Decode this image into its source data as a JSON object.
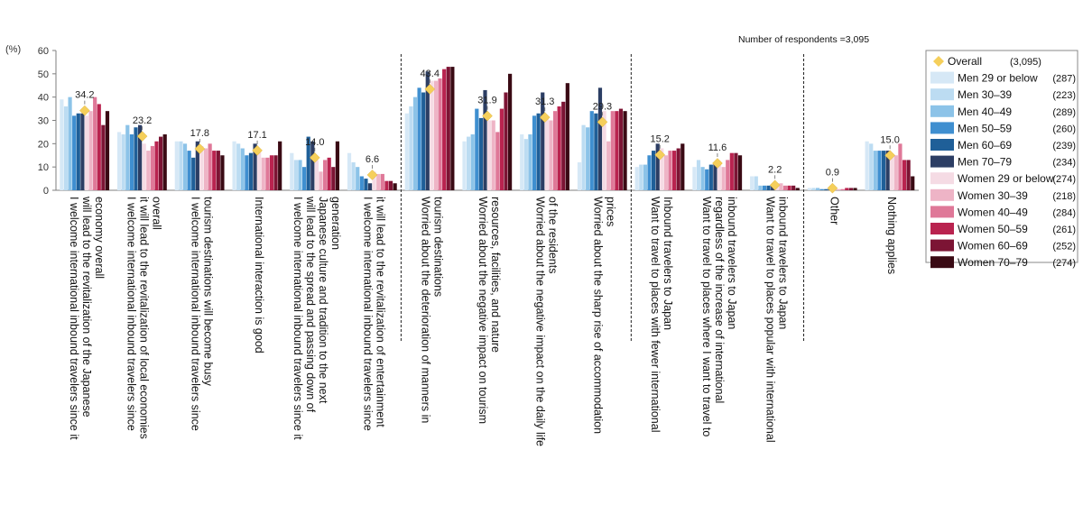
{
  "chart_data": {
    "type": "bar",
    "ylabel": "(%)",
    "ylim": [
      0,
      60
    ],
    "yticks": [
      0,
      10,
      20,
      30,
      40,
      50,
      60
    ],
    "note": "Number of respondents =3,095",
    "categories": [
      "I welcome international inbound travelers since it will lead to the revitalization of the Japanese economy overall",
      "I welcome international inbound travelers since it will lead to the revitalization of local economies overall",
      "I welcome international inbound travelers since tourism destinations will become busy",
      "International interaction is good",
      "I welcome international inbound travelers since it will lead to the spread and passing down of Japanese culture and tradition to the next generation",
      "I welcome international inbound travelers since it will lead to the revitalization of entertainment",
      "Worried about the deterioration of manners in tourism destinations",
      "Worried about the negative impact on tourism resources, facilities, and nature",
      "Worried about the negative impact on the daily life of the residents",
      "Worried about the sharp rise of accommodation prices",
      "Want to travel to places with fewer international inbound travelers to Japan",
      "Want to travel to places where I want to travel to regardless of the increase of international inbound travelers to Japan",
      "Want to travel to places popular with international inbound travelers to Japan",
      "Other",
      "Nothing applies"
    ],
    "category_lines": [
      [
        "I welcome international inbound travelers  since it",
        "will lead to the revitalization of the Japanese",
        "economy overall"
      ],
      [
        "I welcome international inbound travelers since",
        "it will lead to the revitalization of local economies",
        "overall"
      ],
      [
        "I welcome international inbound travelers since",
        "tourism destinations will become busy"
      ],
      [
        "International interaction is good"
      ],
      [
        "I welcome international inbound travelers since it",
        "will lead to the spread and passing down of",
        "Japanese culture and tradition to the next",
        "generation"
      ],
      [
        "I welcome international inbound travelers since",
        "it will lead to the revitalization of entertainment"
      ],
      [
        "Worried about the deterioration of manners in",
        "tourism destinations"
      ],
      [
        "Worried about the negative impact on tourism",
        "resources, facilities, and nature"
      ],
      [
        "Worried about the negative impact on the daily life",
        "of the residents"
      ],
      [
        "Worried about the sharp rise of accommodation",
        "prices"
      ],
      [
        "Want to travel to places with fewer international",
        "Inbound travelers to Japan"
      ],
      [
        "Want to travel to places where I want to travel to",
        "regardless of the increase of international",
        "inbound travelers to Japan"
      ],
      [
        "Want to travel to places popular with international",
        "inbound travelers to Japan"
      ],
      [
        "Other"
      ],
      [
        "Nothing applies"
      ]
    ],
    "overall": {
      "name": "Overall",
      "count": "(3,095)",
      "values": [
        34.2,
        23.2,
        17.8,
        17.1,
        14.0,
        6.6,
        43.4,
        31.9,
        31.3,
        29.3,
        15.2,
        11.6,
        2.2,
        0.9,
        15.0
      ]
    },
    "series": [
      {
        "name": "Men 29 or below",
        "count": "(287)",
        "color": "#d6e8f6",
        "values": [
          39,
          25,
          21,
          21,
          16,
          16,
          33,
          21,
          24,
          12,
          10,
          10,
          6,
          1,
          21
        ]
      },
      {
        "name": "Men 30–39",
        "count": "(223)",
        "color": "#bcdcf2",
        "values": [
          36,
          24,
          21,
          20,
          13,
          12,
          36,
          23,
          22,
          28,
          11,
          13,
          6,
          1,
          20
        ]
      },
      {
        "name": "Men 40–49",
        "count": "(289)",
        "color": "#8cc3e8",
        "values": [
          40,
          28,
          20,
          18,
          13,
          10,
          40,
          24,
          24,
          27,
          11,
          10,
          2,
          1,
          17
        ]
      },
      {
        "name": "Men 50–59",
        "count": "(260)",
        "color": "#3f8fd0",
        "values": [
          32,
          24,
          17,
          15,
          10,
          6,
          44,
          35,
          32,
          34,
          15,
          9,
          2,
          0.5,
          17
        ]
      },
      {
        "name": "Men 60–69",
        "count": "(239)",
        "color": "#1f5f98",
        "values": [
          33,
          27,
          14,
          16,
          23,
          5,
          42,
          31,
          33,
          33,
          17,
          11,
          2,
          0.5,
          17
        ]
      },
      {
        "name": "Men 70–79",
        "count": "(234)",
        "color": "#2c3e64",
        "values": [
          33,
          28,
          21,
          20,
          21,
          3,
          51,
          43,
          42,
          44,
          20,
          12,
          2,
          1,
          17
        ]
      },
      {
        "name": "Women 29 or below",
        "count": "(274)",
        "color": "#f5dbe4",
        "values": [
          32,
          20,
          19,
          17,
          13,
          8,
          47,
          30,
          31,
          34,
          18,
          12,
          3,
          0.5,
          15
        ]
      },
      {
        "name": "Women 30–39",
        "count": "(218)",
        "color": "#eeb4c6",
        "values": [
          34,
          17,
          18,
          14,
          8,
          7,
          47,
          30,
          30,
          21,
          15,
          10,
          3,
          0.5,
          15
        ]
      },
      {
        "name": "Women 40–49",
        "count": "(284)",
        "color": "#df7898",
        "values": [
          40,
          19,
          20,
          14,
          13,
          7,
          48,
          25,
          34,
          34,
          17,
          13,
          2,
          0.5,
          20
        ]
      },
      {
        "name": "Women 50–59",
        "count": "(261)",
        "color": "#b9234f",
        "values": [
          37,
          21,
          17,
          15,
          14,
          4,
          52,
          35,
          36,
          34,
          17,
          16,
          2,
          1,
          13
        ]
      },
      {
        "name": "Women 60–69",
        "count": "(252)",
        "color": "#7c1434",
        "values": [
          28,
          23,
          17,
          15,
          10,
          4,
          53,
          42,
          38,
          35,
          18,
          16,
          2,
          1,
          13
        ]
      },
      {
        "name": "Women 70–79",
        "count": "(274)",
        "color": "#3a0a14",
        "values": [
          34,
          24,
          15,
          21,
          21,
          3,
          53,
          50,
          46,
          34,
          20,
          15,
          1,
          1,
          6
        ]
      }
    ],
    "legend_placement": "right",
    "group_separators_after": [
      5,
      9,
      12
    ],
    "grid": false,
    "colors": {
      "overall_marker": "#f5cf5b",
      "axis": "#7f7f7f",
      "separator": "#222222"
    }
  }
}
